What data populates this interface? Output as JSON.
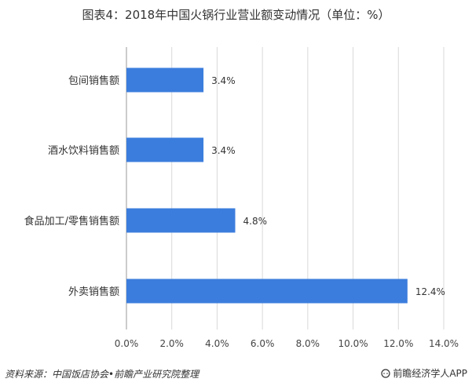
{
  "header": {
    "title": "图表4：2018年中国火锅行业营业额变动情况（单位：%）"
  },
  "chart_data": {
    "type": "bar",
    "orientation": "horizontal",
    "title": "图表4：2018年中国火锅行业营业额变动情况（单位：%）",
    "categories": [
      "包间销售额",
      "酒水饮料销售额",
      "食品加工/零售销售额",
      "外卖销售额"
    ],
    "values": [
      3.4,
      3.4,
      4.8,
      12.4
    ],
    "value_labels": [
      "3.4%",
      "3.4%",
      "4.8%",
      "12.4%"
    ],
    "xlim": [
      0,
      14
    ],
    "ticks": [
      0,
      2,
      4,
      6,
      8,
      10,
      12,
      14
    ],
    "tick_labels": [
      "0.0%",
      "2.0%",
      "4.0%",
      "6.0%",
      "8.0%",
      "10.0%",
      "12.0%",
      "14.0%"
    ],
    "bar_color": "#3B7DDD",
    "grid": true,
    "legend": "none"
  },
  "footer": {
    "source": "资料来源：中国饭店协会•前瞻产业研究院整理",
    "brand": "前瞻经济学人APP",
    "brand_icon": "speech-bubble-icon"
  }
}
